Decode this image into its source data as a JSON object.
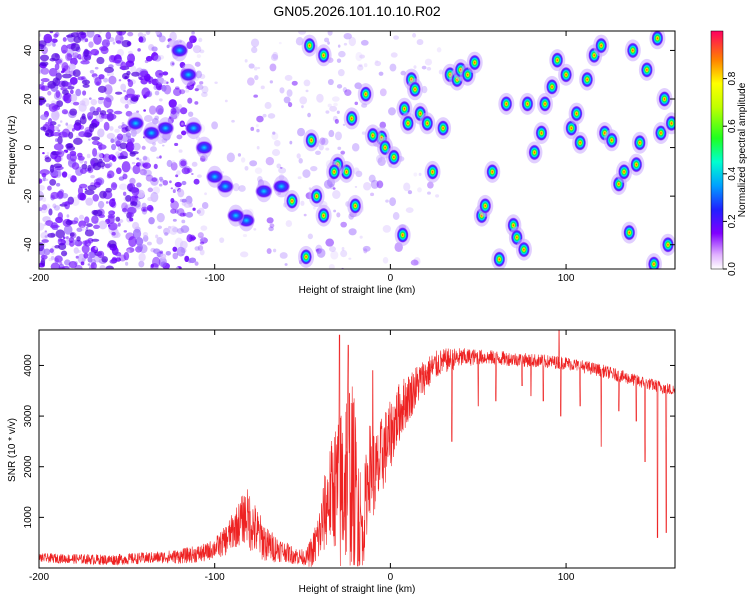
{
  "title": "GN05.2026.101.10.10.R02",
  "colors": {
    "snr_line": "#ee2222",
    "blob_core": "#ff2200",
    "blob_mid": "#00e0ff",
    "blob_outer": "#4400ff",
    "blob_halo": "#b080ff"
  },
  "chart_data": [
    {
      "id": "spectrogram",
      "type": "heatmap",
      "xlabel": "Height of straight line (km)",
      "ylabel": "Frequency (Hz)",
      "xlim": [
        -200,
        162
      ],
      "ylim": [
        -50,
        48
      ],
      "xticks": [
        -200,
        -100,
        0,
        100
      ],
      "xtick_labels": [
        "-200",
        "-100",
        "0",
        "100"
      ],
      "yticks": [
        -40,
        -20,
        0,
        20,
        40
      ],
      "ytick_labels": [
        "-40",
        "-20",
        "0",
        "20",
        "40"
      ],
      "colorbar": {
        "label": "Normalized spectral amplitude",
        "range": [
          0.0,
          1.0
        ],
        "ticks": [
          0.0,
          0.2,
          0.4,
          0.6,
          0.8
        ],
        "tick_labels": [
          "0.0",
          "0.2",
          "0.4",
          "0.6",
          "0.8"
        ],
        "colormap": "rainbow"
      },
      "peaks": [
        [
          -5,
          4
        ],
        [
          -3,
          0
        ],
        [
          2,
          -4
        ],
        [
          -10,
          5
        ],
        [
          -14,
          22
        ],
        [
          -22,
          12
        ],
        [
          -25,
          -10
        ],
        [
          -30,
          -7
        ],
        [
          8,
          16
        ],
        [
          10,
          10
        ],
        [
          12,
          28
        ],
        [
          14,
          24
        ],
        [
          17,
          14
        ],
        [
          21,
          10
        ],
        [
          24,
          -10
        ],
        [
          30,
          8
        ],
        [
          34,
          30
        ],
        [
          38,
          28
        ],
        [
          40,
          32
        ],
        [
          44,
          30
        ],
        [
          48,
          35
        ],
        [
          52,
          -28
        ],
        [
          54,
          -24
        ],
        [
          58,
          -10
        ],
        [
          62,
          -46
        ],
        [
          66,
          18
        ],
        [
          70,
          -32
        ],
        [
          72,
          -37
        ],
        [
          76,
          -42
        ],
        [
          78,
          18
        ],
        [
          82,
          -2
        ],
        [
          86,
          6
        ],
        [
          88,
          18
        ],
        [
          92,
          25
        ],
        [
          95,
          36
        ],
        [
          100,
          30
        ],
        [
          103,
          8
        ],
        [
          106,
          14
        ],
        [
          108,
          2
        ],
        [
          112,
          28
        ],
        [
          116,
          38
        ],
        [
          120,
          42
        ],
        [
          122,
          6
        ],
        [
          126,
          3
        ],
        [
          130,
          -15
        ],
        [
          133,
          -10
        ],
        [
          136,
          -35
        ],
        [
          138,
          40
        ],
        [
          140,
          -7
        ],
        [
          142,
          2
        ],
        [
          146,
          32
        ],
        [
          150,
          -48
        ],
        [
          152,
          45
        ],
        [
          154,
          6
        ],
        [
          156,
          20
        ],
        [
          158,
          -40
        ],
        [
          160,
          10
        ],
        [
          7,
          -36
        ],
        [
          -45,
          3
        ],
        [
          -42,
          -20
        ],
        [
          -38,
          -28
        ],
        [
          -32,
          -10
        ],
        [
          -48,
          -45
        ],
        [
          -46,
          42
        ],
        [
          -38,
          38
        ],
        [
          -20,
          -24
        ],
        [
          -56,
          -22
        ],
        [
          -62,
          -16
        ],
        [
          -72,
          -18
        ],
        [
          -82,
          -30
        ],
        [
          -88,
          -28
        ],
        [
          -94,
          -16
        ],
        [
          -100,
          -12
        ],
        [
          -106,
          0
        ],
        [
          -112,
          8
        ],
        [
          -115,
          30
        ],
        [
          -120,
          40
        ],
        [
          -128,
          8
        ],
        [
          -136,
          6
        ],
        [
          -145,
          10
        ]
      ]
    },
    {
      "id": "snr",
      "type": "line",
      "xlabel": "Height of straight line (km)",
      "ylabel": "SNR (10 * v/v)",
      "xlim": [
        -200,
        162
      ],
      "ylim": [
        0,
        4700
      ],
      "xticks": [
        -200,
        -100,
        0,
        100
      ],
      "xtick_labels": [
        "-200",
        "-100",
        "0",
        "100"
      ],
      "yticks": [
        1000,
        2000,
        3000,
        4000
      ],
      "ytick_labels": [
        "1000",
        "2000",
        "3000",
        "4000"
      ],
      "envelope": {
        "x": [
          -200,
          -160,
          -120,
          -105,
          -95,
          -88,
          -82,
          -76,
          -70,
          -62,
          -55,
          -48,
          -44,
          -40,
          -36,
          -32,
          -28,
          -24,
          -20,
          -16,
          -12,
          -8,
          -4,
          0,
          4,
          8,
          12,
          16,
          20,
          24,
          28,
          32,
          40,
          50,
          60,
          80,
          100,
          120,
          140,
          162
        ],
        "y": [
          200,
          160,
          230,
          300,
          500,
          800,
          1050,
          700,
          450,
          350,
          250,
          200,
          350,
          700,
          1300,
          1600,
          1500,
          2100,
          1500,
          700,
          2000,
          1800,
          2300,
          2600,
          3000,
          3250,
          3450,
          3650,
          3800,
          3950,
          4050,
          4100,
          4150,
          4170,
          4150,
          4100,
          4050,
          3900,
          3700,
          3500
        ]
      },
      "noise_amplitude": {
        "x": [
          -200,
          -130,
          -100,
          -88,
          -80,
          -70,
          -60,
          -48,
          -40,
          -32,
          -28,
          -24,
          -20,
          -16,
          -12,
          -8,
          -4,
          0,
          10,
          20,
          30,
          50,
          100,
          162
        ],
        "y": [
          90,
          120,
          200,
          400,
          600,
          350,
          200,
          150,
          600,
          1200,
          1800,
          2000,
          1800,
          900,
          900,
          900,
          800,
          700,
          500,
          350,
          250,
          150,
          130,
          120
        ]
      },
      "dips": [
        [
          35,
          2500
        ],
        [
          50,
          3200
        ],
        [
          60,
          3300
        ],
        [
          75,
          3600
        ],
        [
          80,
          3400
        ],
        [
          87,
          3300
        ],
        [
          97,
          3000
        ],
        [
          108,
          3200
        ],
        [
          120,
          2400
        ],
        [
          130,
          3100
        ],
        [
          140,
          2900
        ],
        [
          145,
          2100
        ],
        [
          152,
          600
        ],
        [
          157,
          700
        ]
      ],
      "spikes": [
        [
          -29,
          4600
        ],
        [
          -24,
          4400
        ],
        [
          -10,
          3900
        ],
        [
          96,
          4750
        ]
      ]
    }
  ]
}
